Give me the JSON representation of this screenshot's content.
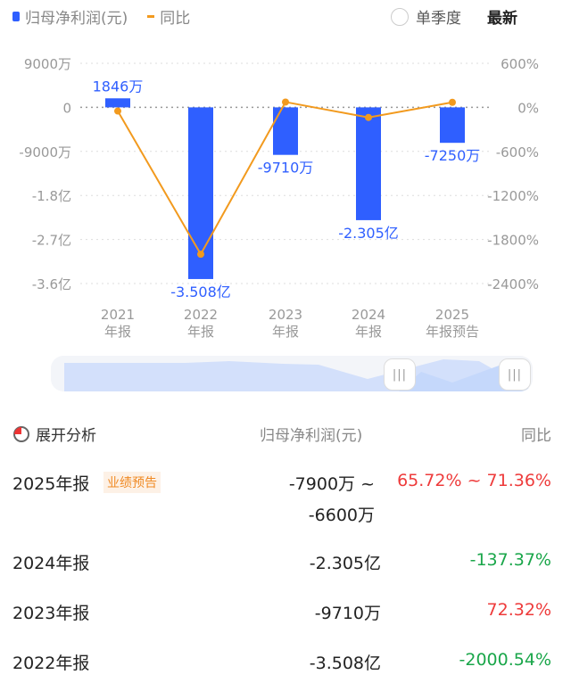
{
  "legend": {
    "series1": "归母净利润(元)",
    "series2": "同比"
  },
  "controls": {
    "quarter": "单季度",
    "latest": "最新"
  },
  "chart_data": {
    "type": "bar+line",
    "categories": [
      [
        "2021",
        "年报"
      ],
      [
        "2022",
        "年报"
      ],
      [
        "2023",
        "年报"
      ],
      [
        "2024",
        "年报"
      ],
      [
        "2025",
        "年报预告"
      ]
    ],
    "series": [
      {
        "name": "归母净利润(元)",
        "type": "bar",
        "values": [
          18460000,
          -350800000,
          -97100000,
          -230500000,
          -72500000
        ],
        "labels": [
          "1846万",
          "-3.508亿",
          "-9710万",
          "-2.305亿",
          "-7250万"
        ],
        "color": "#2f5fff"
      },
      {
        "name": "同比",
        "type": "line",
        "values": [
          -50,
          -2000.54,
          72.32,
          -137.37,
          68.54
        ],
        "color": "#f29a1e"
      }
    ],
    "left_axis": {
      "ticks": [
        90000000,
        0,
        -90000000,
        -180000000,
        -270000000,
        -360000000
      ],
      "tick_labels": [
        "9000万",
        "0",
        "-9000万",
        "-1.8亿",
        "-2.7亿",
        "-3.6亿"
      ],
      "ylim": [
        -360000000,
        90000000
      ]
    },
    "right_axis": {
      "ticks": [
        600,
        0,
        -600,
        -1200,
        -1800,
        -2400
      ],
      "tick_labels": [
        "600%",
        "0%",
        "-600%",
        "-1200%",
        "-1800%",
        "-2400%"
      ],
      "ylim": [
        -2400,
        600
      ]
    }
  },
  "table": {
    "title": "展开分析",
    "col1": "归母净利润(元)",
    "col2": "同比",
    "rows": [
      {
        "period": "2025年报",
        "tag": "业绩预告",
        "value": "-7900万 ~",
        "value2": "-6600万",
        "yoy": "65.72% ~ 71.36%",
        "dir": "up"
      },
      {
        "period": "2024年报",
        "value": "-2.305亿",
        "yoy": "-137.37%",
        "dir": "down"
      },
      {
        "period": "2023年报",
        "value": "-9710万",
        "yoy": "72.32%",
        "dir": "up"
      },
      {
        "period": "2022年报",
        "value": "-3.508亿",
        "yoy": "-2000.54%",
        "dir": "down"
      }
    ]
  }
}
